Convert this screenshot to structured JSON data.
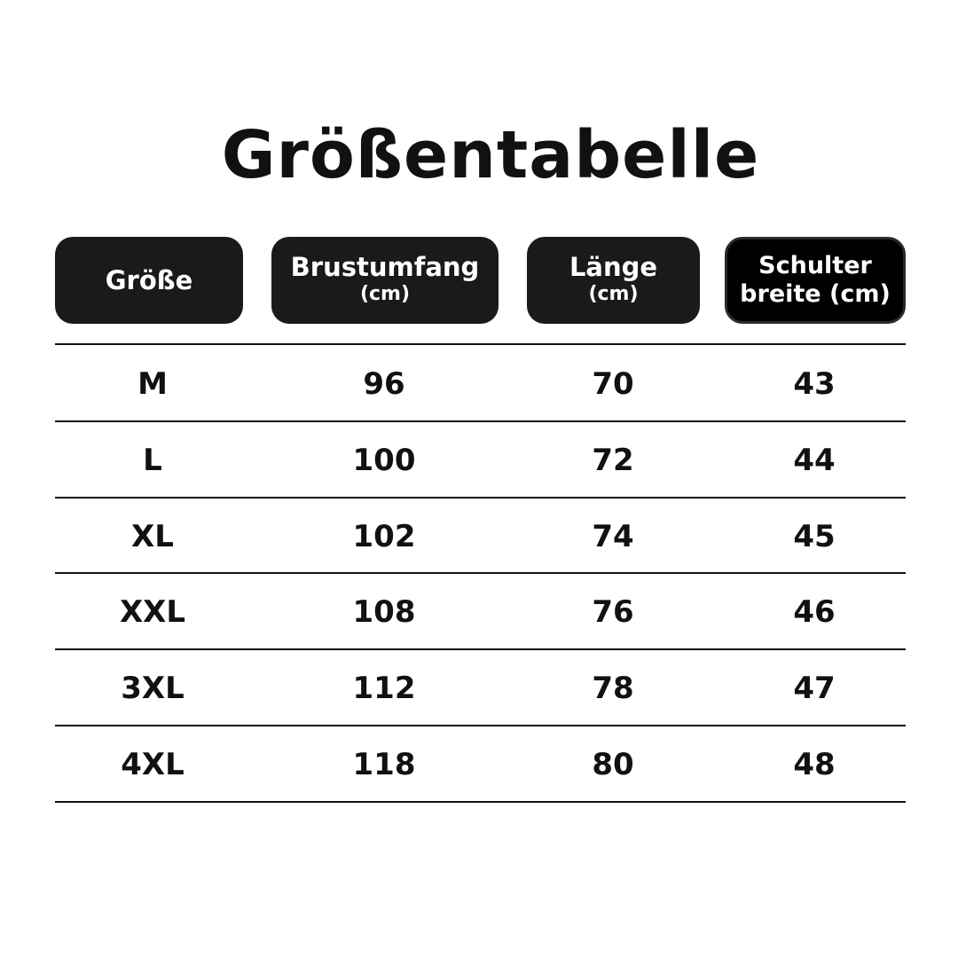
{
  "title": "Größentabelle",
  "headers": [
    {
      "main": "Größe",
      "sub": ""
    },
    {
      "main": "Brustumfang",
      "sub": "(cm)"
    },
    {
      "main": "Länge",
      "sub": "(cm)"
    },
    {
      "main": "Schulter",
      "sub": "breite (cm)"
    }
  ],
  "rows": [
    [
      "M",
      "96",
      "70",
      "43"
    ],
    [
      "L",
      "100",
      "72",
      "44"
    ],
    [
      "XL",
      "102",
      "74",
      "45"
    ],
    [
      "XXL",
      "108",
      "76",
      "46"
    ],
    [
      "3XL",
      "112",
      "78",
      "47"
    ],
    [
      "4XL",
      "118",
      "80",
      "48"
    ]
  ]
}
